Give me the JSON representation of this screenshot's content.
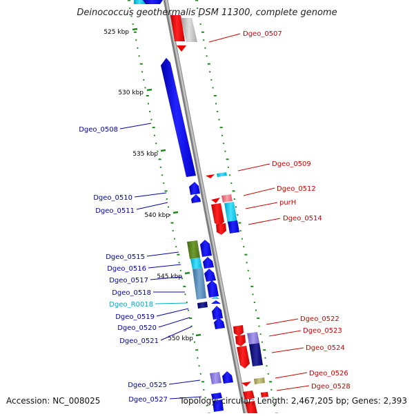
{
  "title": "Deinococcus geothermalis DSM 11300, complete genome",
  "footer": {
    "accession": "Accession: NC_008025",
    "summary": "Topology: circular; Length: 2,467,205 bp; Genes: 2,393"
  },
  "colors": {
    "forward_gene": "#ff0000",
    "reverse_gene": "#0000ff",
    "rna_gene": "#33ccdd",
    "forward_label": "#cc0000",
    "reverse_label": "#0000aa",
    "rna_label": "#00aacc",
    "backbone": "#8c8c8c",
    "tick": "#1a8a1a"
  },
  "scale_labels": [
    "525 kbp",
    "530 kbp",
    "535 kbp",
    "540 kbp",
    "545 kbp",
    "550 kbp"
  ],
  "genes_left": [
    {
      "name": "Dgeo_0508",
      "kind": "cds"
    },
    {
      "name": "Dgeo_0510",
      "kind": "cds"
    },
    {
      "name": "Dgeo_0511",
      "kind": "cds"
    },
    {
      "name": "Dgeo_0515",
      "kind": "cds"
    },
    {
      "name": "Dgeo_0516",
      "kind": "cds"
    },
    {
      "name": "Dgeo_0517",
      "kind": "cds"
    },
    {
      "name": "Dgeo_0518",
      "kind": "cds"
    },
    {
      "name": "Dgeo_R0018",
      "kind": "rna"
    },
    {
      "name": "Dgeo_0519",
      "kind": "cds"
    },
    {
      "name": "Dgeo_0520",
      "kind": "cds"
    },
    {
      "name": "Dgeo_0521",
      "kind": "cds"
    },
    {
      "name": "Dgeo_0525",
      "kind": "cds"
    },
    {
      "name": "Dgeo_0527",
      "kind": "cds"
    }
  ],
  "genes_right": [
    {
      "name": "Dgeo_0507"
    },
    {
      "name": "Dgeo_0509"
    },
    {
      "name": "Dgeo_0512"
    },
    {
      "name": "purH"
    },
    {
      "name": "Dgeo_0514"
    },
    {
      "name": "Dgeo_0522"
    },
    {
      "name": "Dgeo_0523"
    },
    {
      "name": "Dgeo_0524"
    },
    {
      "name": "Dgeo_0526"
    },
    {
      "name": "Dgeo_0528"
    }
  ]
}
